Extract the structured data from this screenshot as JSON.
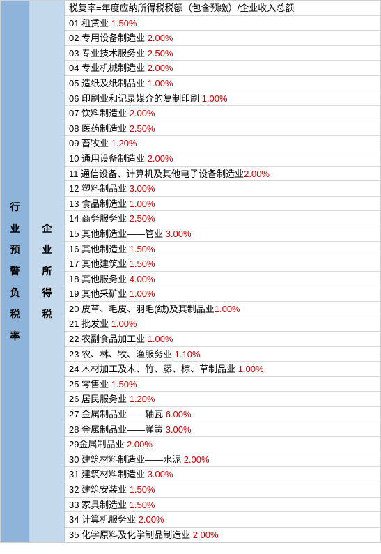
{
  "layout": {
    "left_bg": "#8fb4d9",
    "mid_bg": "#c5d9ed",
    "border_color": "#d9d9d9",
    "text_color": "#000000",
    "pct_color": "#d00000",
    "fontsize": 13
  },
  "left_label": "行业预警负税率",
  "mid_label": "企业所得税",
  "formula": "税复率=年度应纳所得税税额（包含预缴）/企业收入总额",
  "rows": [
    {
      "num": "01",
      "name": " 租赁业 ",
      "pct": "1.50%"
    },
    {
      "num": "02",
      "name": " 专用设备制造业 ",
      "pct": "2.00%"
    },
    {
      "num": "03",
      "name": " 专业技术服务业 ",
      "pct": "2.50%"
    },
    {
      "num": "04",
      "name": " 专业机械制造业 ",
      "pct": "2.00%"
    },
    {
      "num": "05",
      "name": " 造纸及纸制品业 ",
      "pct": "1.00%"
    },
    {
      "num": "06",
      "name": " 印刷业和记录媒介的复制印刷 ",
      "pct": "1.00%"
    },
    {
      "num": "07",
      "name": " 饮料制造业 ",
      "pct": "2.00%"
    },
    {
      "num": "08",
      "name": " 医药制造业 ",
      "pct": "2.50%"
    },
    {
      "num": "09",
      "name": " 畜牧业 ",
      "pct": "1.20%"
    },
    {
      "num": "10",
      "name": " 通用设备制造业 ",
      "pct": "2.00%"
    },
    {
      "num": "11",
      "name": " 通信设备、计算机及其他电子设备制造业",
      "pct": "2.00%"
    },
    {
      "num": "12",
      "name": " 塑料制品业 ",
      "pct": "3.00%"
    },
    {
      "num": "13",
      "name": " 食品制造业 ",
      "pct": "1.00%"
    },
    {
      "num": "14",
      "name": " 商务服务业 ",
      "pct": "2.50%"
    },
    {
      "num": "15",
      "name": " 其他制造业——管业 ",
      "pct": "3.00%"
    },
    {
      "num": "16",
      "name": " 其他制造业 ",
      "pct": "1.50%"
    },
    {
      "num": "17",
      "name": " 其他建筑业 ",
      "pct": "1.50%"
    },
    {
      "num": "18",
      "name": " 其他服务业 ",
      "pct": "4.00%"
    },
    {
      "num": "19",
      "name": " 其他采矿业 ",
      "pct": "1.00%"
    },
    {
      "num": "20",
      "name": " 皮革、毛皮、羽毛(绒)及其制品业",
      "pct": "1.00%"
    },
    {
      "num": "21",
      "name": " 批发业 ",
      "pct": "1.00%"
    },
    {
      "num": "22",
      "name": " 农副食品加工业 ",
      "pct": "1.00%"
    },
    {
      "num": "23",
      "name": " 农、林、牧、渔服务业 ",
      "pct": "1.10%"
    },
    {
      "num": "24",
      "name": " 木材加工及木、竹、藤、棕、草制品业 ",
      "pct": "1.00%"
    },
    {
      "num": "25",
      "name": " 零售业 ",
      "pct": "1.50%"
    },
    {
      "num": "26",
      "name": " 居民服务业 ",
      "pct": "1.20%"
    },
    {
      "num": "27",
      "name": " 金属制品业——轴瓦 ",
      "pct": "6.00%"
    },
    {
      "num": "28",
      "name": " 金属制品业——弹簧 ",
      "pct": "3.00%"
    },
    {
      "num": "29",
      "name": "金属制品业 ",
      "pct": "2.00%"
    },
    {
      "num": "30",
      "name": " 建筑材料制造业——水泥 ",
      "pct": "2.00%"
    },
    {
      "num": "31",
      "name": " 建筑材料制造业 ",
      "pct": "3.00%"
    },
    {
      "num": "32",
      "name": " 建筑安装业 ",
      "pct": "1.50%"
    },
    {
      "num": "33",
      "name": " 家具制造业 ",
      "pct": "1.50%"
    },
    {
      "num": "34",
      "name": " 计算机服务业 ",
      "pct": "2.00%"
    },
    {
      "num": "35",
      "name": " 化学原料及化学制品制造业 ",
      "pct": "2.00%"
    }
  ]
}
